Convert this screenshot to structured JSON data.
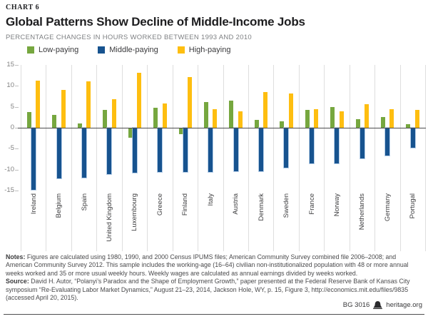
{
  "header": {
    "kicker": "CHART 6",
    "title": "Global Patterns Show Decline of Middle-Income Jobs",
    "subtitle": "PERCENTAGE CHANGES IN HOURS WORKED BETWEEN 1993 AND 2010"
  },
  "legend": [
    {
      "label": "Low-paying",
      "color": "#76a73f"
    },
    {
      "label": "Middle-paying",
      "color": "#17538f"
    },
    {
      "label": "High-paying",
      "color": "#febe10"
    }
  ],
  "chart_data": {
    "type": "bar",
    "title": "Global Patterns Show Decline of Middle-Income Jobs",
    "subtitle": "Percentage changes in hours worked between 1993 and 2010",
    "xlabel": "",
    "ylabel": "",
    "ylim": [
      -15,
      15
    ],
    "yticks": [
      15,
      10,
      5,
      0,
      -5,
      -10,
      -15
    ],
    "grid": "vertical-category-separators",
    "legend_position": "top-left",
    "categories": [
      "Ireland",
      "Belgium",
      "Spain",
      "United Kingdom",
      "Luxembourg",
      "Greece",
      "Finland",
      "Italy",
      "Austria",
      "Denmark",
      "Sweden",
      "France",
      "Norway",
      "Netherlands",
      "Germany",
      "Portugal"
    ],
    "series": [
      {
        "name": "Low-paying",
        "color": "#76a73f",
        "values": [
          3.7,
          3.0,
          1.0,
          4.2,
          -2.4,
          4.8,
          -1.6,
          6.1,
          6.4,
          1.8,
          1.6,
          4.2,
          4.9,
          2.1,
          2.5,
          0.9
        ]
      },
      {
        "name": "Middle-paying",
        "color": "#17538f",
        "values": [
          -14.9,
          -12.1,
          -12.0,
          -11.0,
          -10.8,
          -10.6,
          -10.5,
          -10.6,
          -10.4,
          -10.4,
          -9.6,
          -8.6,
          -8.5,
          -7.4,
          -6.7,
          -4.8
        ]
      },
      {
        "name": "High-paying",
        "color": "#febe10",
        "values": [
          11.2,
          9.1,
          11.0,
          6.8,
          13.2,
          5.8,
          12.1,
          4.5,
          4.0,
          8.6,
          8.1,
          4.5,
          3.9,
          5.7,
          4.4,
          4.3
        ]
      }
    ]
  },
  "footer": {
    "notes_label": "Notes:",
    "notes": "Figures are calculated using 1980, 1990, and 2000 Census IPUMS files; American Community Survey combined file 2006–2008; and American Community Survey 2012. This sample includes the working-age (16–64) civilian non-institutionalized population with 48 or more annual weeks worked and 35 or more usual weekly hours. Weekly wages are calculated as annual earnings divided by weeks worked.",
    "source_label": "Source:",
    "source": "David H. Autor, “Polanyi’s Paradox and the Shape of Employment Growth,” paper presented at the Federal Reserve Bank of Kansas City symposium “Re-Evaluating Labor Market Dynamics,” August 21–23, 2014, Jackson Hole, WY, p. 15, Figure 3, http://economics.mit.edu/files/9835 (accessed April 20, 2015).",
    "doc_id": "BG 3016",
    "site": "heritage.org",
    "bell_icon": "liberty-bell",
    "colors": {
      "zero_line": "#4c4c4e",
      "gridline": "#dedede",
      "tick_label": "#808080"
    }
  }
}
